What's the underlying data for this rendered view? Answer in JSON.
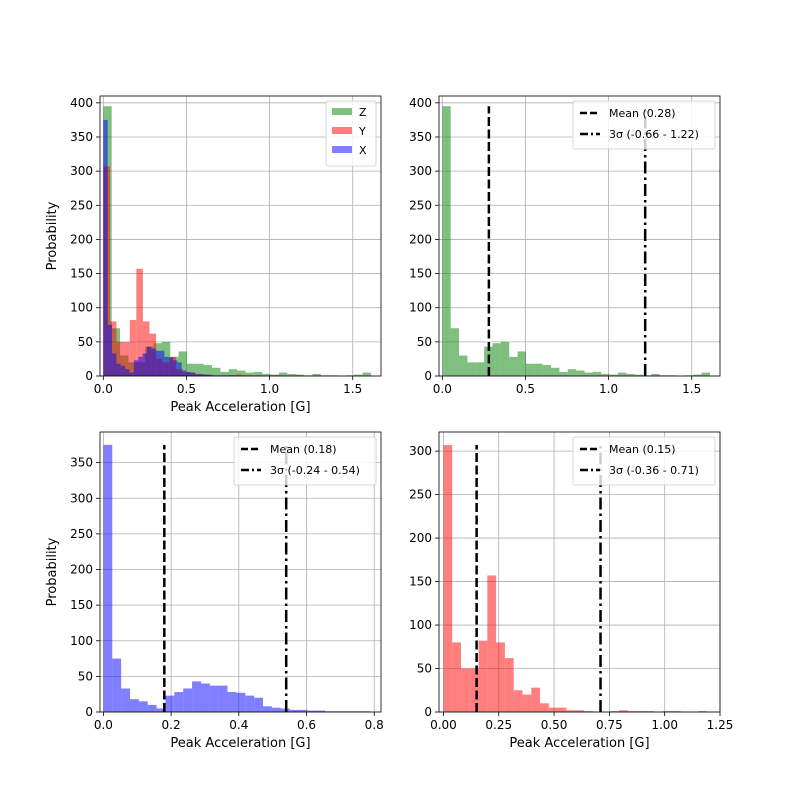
{
  "chart_data": [
    {
      "type": "histogram",
      "xlabel": "Peak Acceleration [G]",
      "ylabel": "Probability",
      "xlim": [
        -0.02,
        1.67
      ],
      "ylim": [
        0,
        410
      ],
      "xticks": [
        0.0,
        0.5,
        1.0,
        1.5
      ],
      "xtick_labels": [
        "0.0",
        "0.5",
        "1.0",
        "1.5"
      ],
      "yticks": [
        0,
        50,
        100,
        150,
        200,
        250,
        300,
        350,
        400
      ],
      "ytick_labels": [
        "0",
        "50",
        "100",
        "150",
        "200",
        "250",
        "300",
        "350",
        "400"
      ],
      "grid": true,
      "legend_position": "upper right",
      "legend_symbol": "patch",
      "series": [
        {
          "name": "Z",
          "color": "#008000",
          "alpha": 0.5,
          "bin_start": 0.0,
          "bin_width": 0.0503,
          "values": [
            395,
            70,
            30,
            20,
            20,
            43,
            48,
            50,
            28,
            36,
            18,
            18,
            16,
            12,
            6,
            10,
            8,
            5,
            6,
            3,
            2,
            5,
            3,
            2,
            1,
            3,
            1,
            1,
            0,
            1,
            2,
            5
          ]
        },
        {
          "name": "Y",
          "color": "#ff0000",
          "alpha": 0.5,
          "bin_start": 0.0,
          "bin_width": 0.0397,
          "values": [
            307,
            80,
            50,
            50,
            82,
            157,
            80,
            62,
            25,
            20,
            28,
            10,
            5,
            5,
            2,
            2,
            1,
            0,
            0,
            1,
            2,
            1,
            1,
            1,
            0,
            1,
            1,
            0,
            0,
            1
          ]
        },
        {
          "name": "X",
          "color": "#0000ff",
          "alpha": 0.5,
          "bin_start": 0.0,
          "bin_width": 0.0262,
          "values": [
            375,
            75,
            33,
            18,
            15,
            10,
            5,
            23,
            28,
            33,
            43,
            40,
            37,
            37,
            28,
            27,
            23,
            20,
            8,
            6,
            5,
            3,
            3,
            2,
            2,
            1,
            1,
            1,
            1,
            1
          ]
        }
      ],
      "annotations": []
    },
    {
      "type": "histogram",
      "xlabel": "",
      "ylabel": "",
      "xlim": [
        -0.02,
        1.67
      ],
      "ylim": [
        0,
        410
      ],
      "xticks": [
        0.0,
        0.5,
        1.0,
        1.5
      ],
      "xtick_labels": [
        "0.0",
        "0.5",
        "1.0",
        "1.5"
      ],
      "yticks": [
        0,
        50,
        100,
        150,
        200,
        250,
        300,
        350,
        400
      ],
      "ytick_labels": [
        "0",
        "50",
        "100",
        "150",
        "200",
        "250",
        "300",
        "350",
        "400"
      ],
      "grid": true,
      "legend_position": "upper right",
      "legend_symbol": "line",
      "series": [
        {
          "name": "",
          "color": "#008000",
          "alpha": 0.5,
          "bin_start": 0.0,
          "bin_width": 0.0503,
          "values": [
            395,
            70,
            30,
            20,
            20,
            43,
            48,
            50,
            28,
            36,
            18,
            18,
            16,
            12,
            6,
            10,
            8,
            5,
            6,
            3,
            2,
            5,
            3,
            2,
            1,
            3,
            1,
            1,
            0,
            1,
            2,
            5
          ]
        }
      ],
      "vlines": [
        {
          "label": "Mean (0.28)",
          "x": 0.28,
          "ymax": 395,
          "style": "dashed",
          "color": "#000000"
        },
        {
          "label": "3σ (-0.66 - 1.22)",
          "x": 1.22,
          "ymax": 395,
          "style": "dashdot",
          "color": "#000000"
        }
      ]
    },
    {
      "type": "histogram",
      "xlabel": "Peak Acceleration [G]",
      "ylabel": "Probability",
      "xlim": [
        -0.01,
        0.82
      ],
      "ylim": [
        0,
        393
      ],
      "xticks": [
        0.0,
        0.2,
        0.4,
        0.6,
        0.8
      ],
      "xtick_labels": [
        "0.0",
        "0.2",
        "0.4",
        "0.6",
        "0.8"
      ],
      "yticks": [
        0,
        50,
        100,
        150,
        200,
        250,
        300,
        350
      ],
      "ytick_labels": [
        "0",
        "50",
        "100",
        "150",
        "200",
        "250",
        "300",
        "350"
      ],
      "grid": true,
      "legend_position": "upper right",
      "legend_symbol": "line",
      "series": [
        {
          "name": "",
          "color": "#0000ff",
          "alpha": 0.5,
          "bin_start": 0.0,
          "bin_width": 0.0262,
          "values": [
            375,
            75,
            33,
            18,
            15,
            10,
            5,
            23,
            28,
            33,
            43,
            40,
            37,
            37,
            28,
            27,
            23,
            20,
            8,
            6,
            5,
            3,
            3,
            2,
            2,
            1,
            1,
            1,
            1,
            1
          ]
        }
      ],
      "vlines": [
        {
          "label": "Mean (0.18)",
          "x": 0.18,
          "ymax": 375,
          "style": "dashed",
          "color": "#000000"
        },
        {
          "label": "3σ (-0.24 - 0.54)",
          "x": 0.54,
          "ymax": 375,
          "style": "dashdot",
          "color": "#000000"
        }
      ]
    },
    {
      "type": "histogram",
      "xlabel": "Peak Acceleration [G]",
      "ylabel": "",
      "xlim": [
        -0.02,
        1.25
      ],
      "ylim": [
        0,
        322
      ],
      "xticks": [
        0.0,
        0.25,
        0.5,
        0.75,
        1.0,
        1.25
      ],
      "xtick_labels": [
        "0.00",
        "0.25",
        "0.50",
        "0.75",
        "1.00",
        "1.25"
      ],
      "yticks": [
        0,
        50,
        100,
        150,
        200,
        250,
        300
      ],
      "ytick_labels": [
        "0",
        "50",
        "100",
        "150",
        "200",
        "250",
        "300"
      ],
      "grid": true,
      "legend_position": "upper right",
      "legend_symbol": "line",
      "series": [
        {
          "name": "",
          "color": "#ff0000",
          "alpha": 0.5,
          "bin_start": 0.0,
          "bin_width": 0.0397,
          "values": [
            307,
            80,
            50,
            50,
            82,
            157,
            80,
            62,
            25,
            20,
            28,
            10,
            5,
            5,
            2,
            2,
            1,
            0,
            0,
            1,
            2,
            1,
            1,
            1,
            0,
            1,
            1,
            0,
            0,
            1
          ]
        }
      ],
      "vlines": [
        {
          "label": "Mean (0.15)",
          "x": 0.15,
          "ymax": 307,
          "style": "dashed",
          "color": "#000000"
        },
        {
          "label": "3σ (-0.36 - 0.71)",
          "x": 0.71,
          "ymax": 307,
          "style": "dashdot",
          "color": "#000000"
        }
      ]
    }
  ]
}
